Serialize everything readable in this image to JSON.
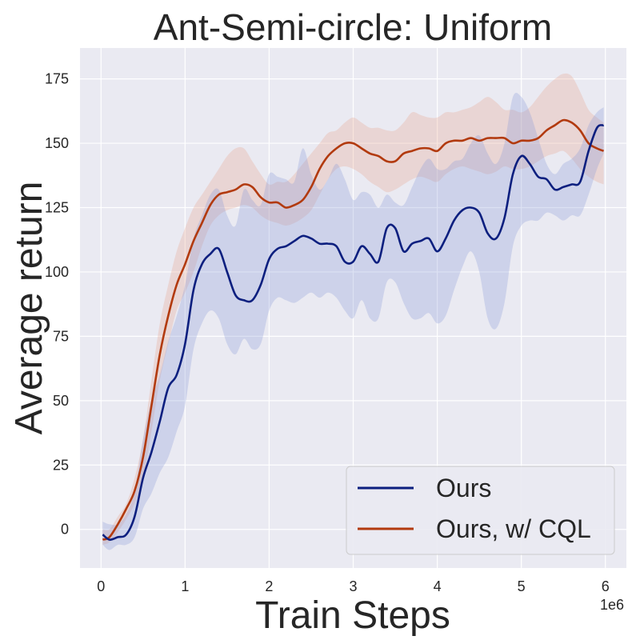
{
  "chart_data": {
    "type": "line",
    "title": "Ant-Semi-circle: Uniform",
    "xlabel": "Train Steps",
    "ylabel": "Average return",
    "x_offset_label": "1e6",
    "xlim": [
      -0.25,
      6.25
    ],
    "ylim": [
      -15,
      187
    ],
    "xticks": [
      0,
      1,
      2,
      3,
      4,
      5,
      6
    ],
    "xtick_labels": [
      "0",
      "1",
      "2",
      "3",
      "4",
      "5",
      "6"
    ],
    "yticks": [
      0,
      25,
      50,
      75,
      100,
      125,
      150,
      175
    ],
    "ytick_labels": [
      "0",
      "25",
      "50",
      "75",
      "100",
      "125",
      "150",
      "175"
    ],
    "grid": true,
    "legend_position": "lower-right",
    "background_color": "#eaeaf2",
    "series": [
      {
        "name": "Ours",
        "color": "#0c1f7f",
        "fill_color": "#8a9bd6",
        "x": [
          0.02,
          0.1,
          0.2,
          0.3,
          0.4,
          0.5,
          0.6,
          0.7,
          0.8,
          0.9,
          1.0,
          1.1,
          1.2,
          1.3,
          1.4,
          1.5,
          1.6,
          1.7,
          1.8,
          1.9,
          2.0,
          2.1,
          2.2,
          2.3,
          2.4,
          2.5,
          2.6,
          2.7,
          2.8,
          2.9,
          3.0,
          3.1,
          3.2,
          3.3,
          3.4,
          3.5,
          3.6,
          3.7,
          3.8,
          3.9,
          4.0,
          4.1,
          4.2,
          4.3,
          4.4,
          4.5,
          4.6,
          4.7,
          4.8,
          4.9,
          5.0,
          5.1,
          5.2,
          5.3,
          5.4,
          5.5,
          5.6,
          5.7,
          5.8,
          5.9,
          5.98
        ],
        "y": [
          -2,
          -4,
          -3,
          -2,
          5,
          20,
          30,
          42,
          55,
          60,
          72,
          93,
          103,
          107,
          109,
          100,
          91,
          89,
          89,
          95,
          105,
          109,
          110,
          112,
          114,
          113,
          111,
          111,
          110,
          104,
          104,
          110,
          107,
          104,
          117,
          117,
          108,
          111,
          112,
          113,
          108,
          113,
          120,
          124,
          125,
          123,
          115,
          113,
          121,
          138,
          145,
          142,
          137,
          136,
          132,
          133,
          134,
          135,
          147,
          156,
          157
        ],
        "upper": [
          3,
          2,
          2,
          6,
          15,
          35,
          50,
          60,
          73,
          83,
          95,
          113,
          122,
          130,
          132,
          122,
          118,
          132,
          128,
          126,
          138,
          137,
          136,
          135,
          148,
          138,
          132,
          136,
          142,
          136,
          128,
          131,
          130,
          125,
          130,
          127,
          126,
          133,
          140,
          144,
          140,
          140,
          143,
          144,
          150,
          153,
          146,
          142,
          150,
          168,
          168,
          162,
          152,
          142,
          138,
          142,
          144,
          148,
          157,
          162,
          164
        ],
        "lower": [
          -6,
          -8,
          -6,
          -6,
          -3,
          8,
          14,
          22,
          28,
          38,
          48,
          70,
          80,
          85,
          82,
          72,
          68,
          74,
          70,
          72,
          85,
          90,
          89,
          88,
          90,
          92,
          90,
          92,
          90,
          85,
          82,
          89,
          82,
          82,
          96,
          96,
          88,
          82,
          82,
          84,
          80,
          83,
          93,
          102,
          108,
          100,
          82,
          78,
          88,
          110,
          118,
          120,
          120,
          123,
          122,
          120,
          122,
          122,
          130,
          140,
          146
        ]
      },
      {
        "name": "Ours, w/ CQL",
        "color": "#b23a0e",
        "fill_color": "#e8a58e",
        "x": [
          0.02,
          0.1,
          0.2,
          0.3,
          0.4,
          0.5,
          0.6,
          0.7,
          0.8,
          0.9,
          1.0,
          1.1,
          1.2,
          1.3,
          1.4,
          1.5,
          1.6,
          1.7,
          1.8,
          1.9,
          2.0,
          2.1,
          2.2,
          2.3,
          2.4,
          2.5,
          2.6,
          2.7,
          2.8,
          2.9,
          3.0,
          3.1,
          3.2,
          3.3,
          3.4,
          3.5,
          3.6,
          3.7,
          3.8,
          3.9,
          4.0,
          4.1,
          4.2,
          4.3,
          4.4,
          4.5,
          4.6,
          4.7,
          4.8,
          4.9,
          5.0,
          5.1,
          5.2,
          5.3,
          5.4,
          5.5,
          5.6,
          5.7,
          5.8,
          5.9,
          5.98
        ],
        "y": [
          -4,
          -3,
          2,
          8,
          15,
          28,
          48,
          68,
          83,
          95,
          103,
          112,
          119,
          126,
          130,
          131,
          132,
          134,
          133,
          129,
          127,
          127,
          125,
          126,
          128,
          133,
          140,
          145,
          148,
          150,
          150,
          148,
          146,
          145,
          143,
          143,
          146,
          147,
          148,
          148,
          147,
          150,
          151,
          151,
          152,
          151,
          152,
          152,
          152,
          150,
          151,
          151,
          152,
          155,
          157,
          159,
          158,
          155,
          150,
          148,
          147
        ],
        "upper": [
          0,
          0,
          5,
          10,
          20,
          35,
          58,
          80,
          95,
          108,
          117,
          125,
          130,
          135,
          140,
          145,
          148,
          148,
          143,
          138,
          134,
          135,
          135,
          138,
          142,
          146,
          150,
          154,
          155,
          158,
          160,
          158,
          156,
          156,
          155,
          155,
          158,
          162,
          161,
          160,
          160,
          162,
          162,
          163,
          164,
          166,
          168,
          166,
          163,
          163,
          162,
          164,
          168,
          172,
          175,
          177,
          176,
          170,
          163,
          160,
          158
        ],
        "lower": [
          -6,
          -5,
          -1,
          4,
          10,
          20,
          38,
          58,
          72,
          85,
          92,
          100,
          110,
          118,
          122,
          124,
          125,
          126,
          125,
          122,
          120,
          119,
          118,
          119,
          121,
          124,
          130,
          136,
          140,
          141,
          140,
          138,
          135,
          133,
          131,
          132,
          134,
          136,
          137,
          136,
          135,
          138,
          140,
          141,
          140,
          139,
          138,
          139,
          141,
          140,
          140,
          141,
          143,
          145,
          146,
          147,
          144,
          140,
          137,
          135,
          134
        ]
      }
    ]
  }
}
